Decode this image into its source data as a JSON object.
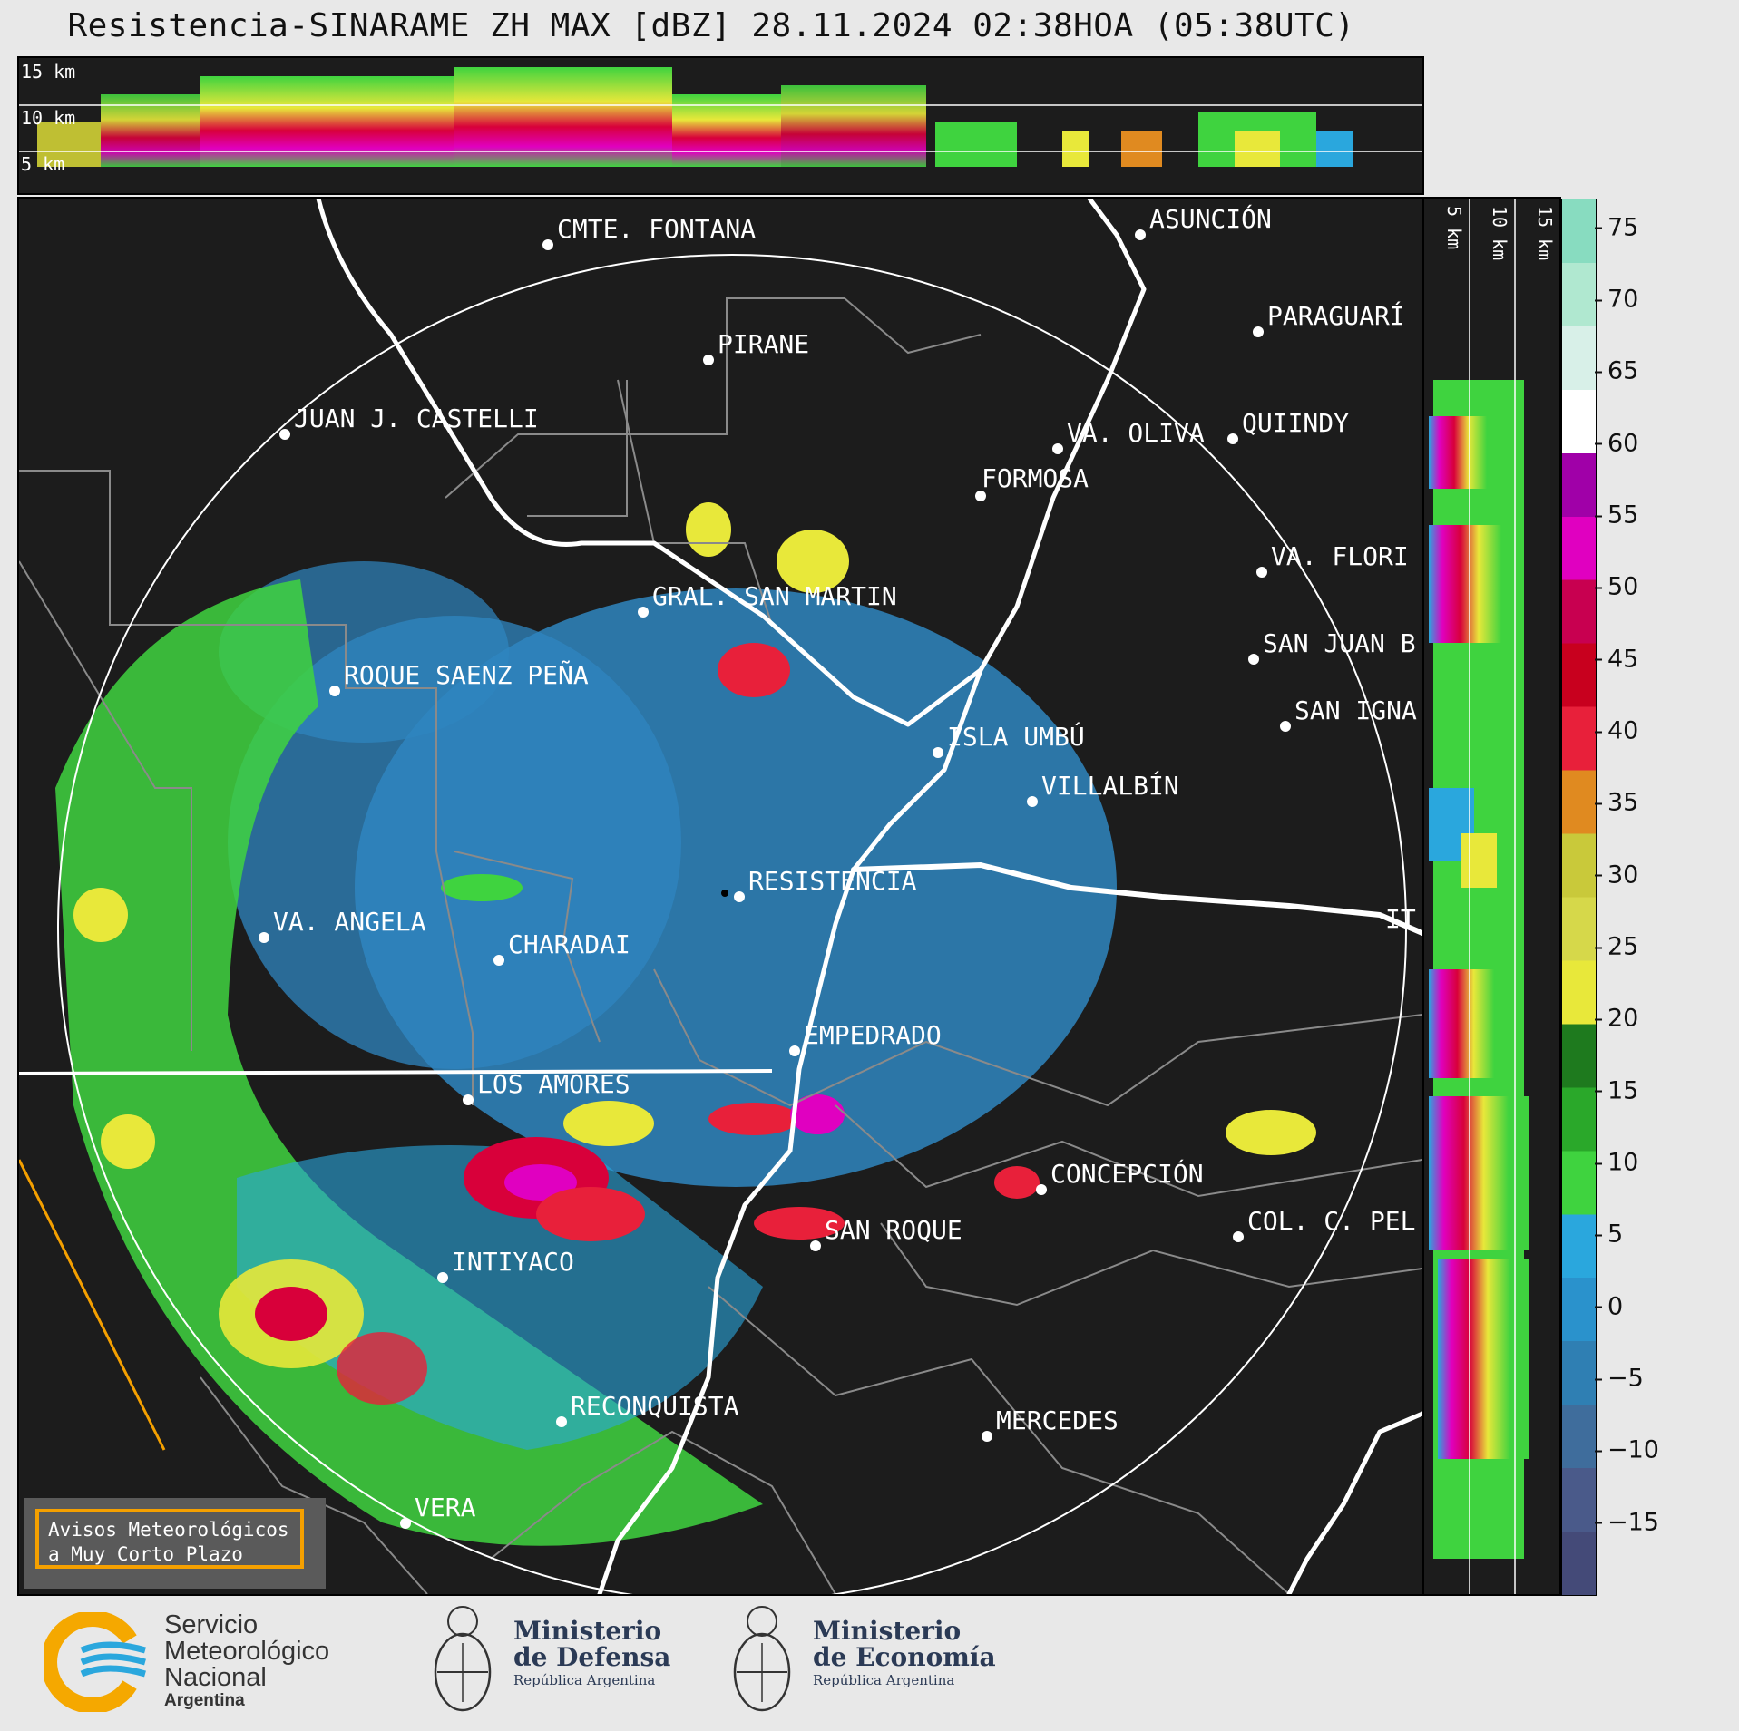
{
  "title": "Resistencia-SINARAME ZH MAX [dBZ] 28.11.2024 02:38HOA (05:38UTC)",
  "top_panel": {
    "height_labels": [
      "15 km",
      "10 km",
      "5 km"
    ]
  },
  "side_panel": {
    "height_labels": [
      "5 km",
      "10 km",
      "15 km"
    ]
  },
  "colorbar": {
    "unit": "dBZ",
    "ticks": [
      "75",
      "70",
      "65",
      "60",
      "55",
      "50",
      "45",
      "40",
      "35",
      "30",
      "25",
      "20",
      "15",
      "10",
      "5",
      "0",
      "−5",
      "−10",
      "−15"
    ],
    "colors": [
      "#444a78",
      "#4a5a8a",
      "#3f6d9c",
      "#2f7fb3",
      "#2a92cc",
      "#2aa7dd",
      "#3fd33f",
      "#2aa82a",
      "#1e7a1e",
      "#e8e83a",
      "#d6d84a",
      "#c9c93a",
      "#e08a20",
      "#e8203a",
      "#c8001e",
      "#c80050",
      "#e000c0",
      "#a000a8",
      "#ffffff",
      "#d8f0e8",
      "#b0e8d0",
      "#88dcc0"
    ],
    "min": -20,
    "max": 77
  },
  "map": {
    "radar_site": "RESISTENCIA",
    "cities": [
      {
        "name": "CMTE. FONTANA"
      },
      {
        "name": "ASUNCIÓN"
      },
      {
        "name": "PARAGUARÍ"
      },
      {
        "name": "PIRANE"
      },
      {
        "name": "JUAN J. CASTELLI"
      },
      {
        "name": "VA. OLIVA"
      },
      {
        "name": "QUIINDY"
      },
      {
        "name": "FORMOSA"
      },
      {
        "name": "VA. FLORI"
      },
      {
        "name": "GRAL. SAN MARTIN"
      },
      {
        "name": "SAN JUAN B"
      },
      {
        "name": "ROQUE SAENZ PEÑA"
      },
      {
        "name": "SAN IGNA"
      },
      {
        "name": "ISLA UMBÚ"
      },
      {
        "name": "VILLALBÍN"
      },
      {
        "name": "RESISTENCIA"
      },
      {
        "name": "VA. ANGELA"
      },
      {
        "name": "CHARADAI"
      },
      {
        "name": "IT"
      },
      {
        "name": "EMPEDRADO"
      },
      {
        "name": "LOS AMORES"
      },
      {
        "name": "CONCEPCIÓN"
      },
      {
        "name": "SAN ROQUE"
      },
      {
        "name": "COL. C. PEL"
      },
      {
        "name": "INTIYACO"
      },
      {
        "name": "RECONQUISTA"
      },
      {
        "name": "MERCEDES"
      },
      {
        "name": "VERA"
      }
    ]
  },
  "warning_box": {
    "line1": "Avisos Meteorológicos",
    "line2": "a Muy Corto Plazo"
  },
  "logos": {
    "smn": {
      "line1": "Servicio",
      "line2": "Meteorológico",
      "line3": "Nacional",
      "line4": "Argentina"
    },
    "defensa": {
      "line1": "Ministerio",
      "line2": "de Defensa",
      "line3": "República Argentina"
    },
    "economia": {
      "line1": "Ministerio",
      "line2": "de Economía",
      "line3": "República Argentina"
    }
  }
}
